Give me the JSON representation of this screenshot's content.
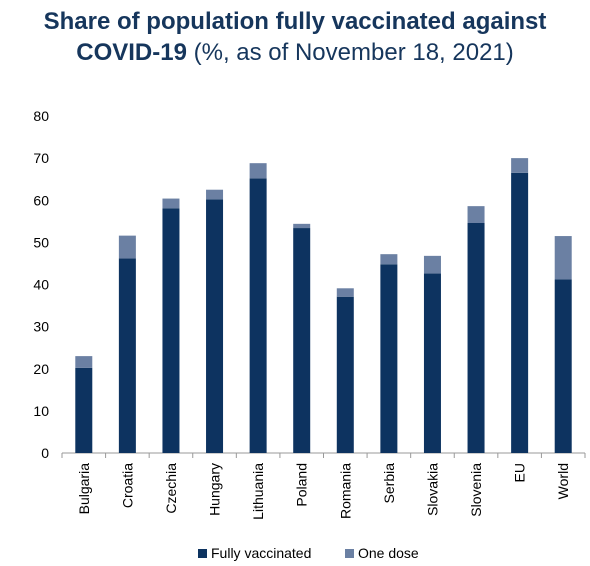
{
  "title": {
    "bold": "Share of population fully vaccinated against COVID-19",
    "regular": " (%, as of November 18, 2021)"
  },
  "colors": {
    "fully": "#0d3360",
    "one": "#6b80a3",
    "axis": "#999999"
  },
  "chart_data": {
    "type": "bar",
    "stacked": true,
    "title": "Share of population fully vaccinated against COVID-19 (%, as of November 18, 2021)",
    "categories": [
      "Bulgaria",
      "Croatia",
      "Czechia",
      "Hungary",
      "Lithuania",
      "Poland",
      "Romania",
      "Serbia",
      "Slovakia",
      "Slovenia",
      "EU",
      "World"
    ],
    "series": [
      {
        "name": "Fully vaccinated",
        "values": [
          20.2,
          46.2,
          58.1,
          60.2,
          65.2,
          53.4,
          37.1,
          44.8,
          42.6,
          54.6,
          66.5,
          41.2
        ]
      },
      {
        "name": "One dose",
        "values": [
          2.8,
          5.4,
          2.3,
          2.3,
          3.6,
          1.0,
          2.0,
          2.4,
          4.2,
          4.0,
          3.5,
          10.3
        ]
      }
    ],
    "ylim": [
      0,
      80
    ],
    "yticks": [
      0,
      10,
      20,
      30,
      40,
      50,
      60,
      70,
      80
    ],
    "grid": false,
    "legend": "bottom"
  },
  "legend": [
    {
      "label": "Fully vaccinated"
    },
    {
      "label": "One dose"
    }
  ]
}
